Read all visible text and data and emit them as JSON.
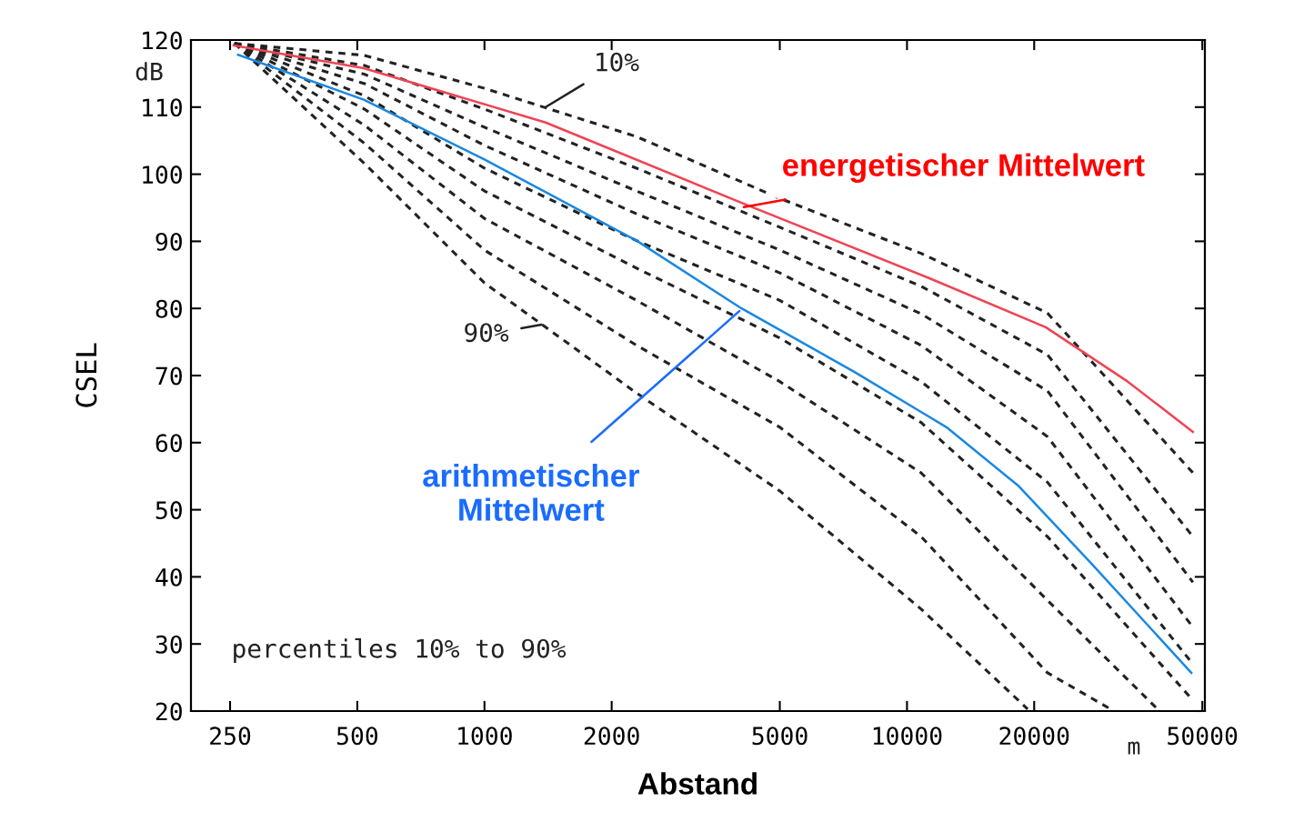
{
  "chart_data": {
    "type": "line",
    "xlabel": "Abstand",
    "ylabel": "CSEL",
    "log": "x",
    "xlim": [
      202,
      50700
    ],
    "ylim": [
      20,
      120
    ],
    "xticks": [
      250,
      500,
      1000,
      2000,
      5000,
      10000,
      20000,
      50000
    ],
    "yticks": [
      20,
      30,
      40,
      50,
      60,
      70,
      80,
      90,
      100,
      110,
      120
    ],
    "grid": false,
    "marker": "none",
    "series": [
      {
        "color": "#222222",
        "line_style": "dashed",
        "x": [
          256,
          520,
          1000,
          2290,
          5000,
          10800,
          21500,
          47500
        ],
        "values": [
          119.5,
          117.7,
          112.8,
          105.6,
          96.4,
          88.2,
          79.3,
          55.5
        ]
      },
      {
        "color": "#222222",
        "line_style": "dashed",
        "x": [
          256,
          520,
          1000,
          2290,
          5000,
          10800,
          21500,
          47500
        ],
        "values": [
          119.5,
          116.2,
          109.7,
          100.9,
          92.1,
          83.3,
          73.1,
          46.0
        ]
      },
      {
        "color": "#222222",
        "line_style": "dashed",
        "x": [
          256,
          520,
          1000,
          2290,
          5000,
          10800,
          21500,
          47500
        ],
        "values": [
          119.5,
          114.9,
          107.0,
          97.5,
          88.7,
          79.2,
          67.7,
          39.2
        ]
      },
      {
        "color": "#222222",
        "line_style": "dashed",
        "x": [
          256,
          520,
          1000,
          2290,
          5000,
          10800,
          21500,
          47500
        ],
        "values": [
          119.5,
          113.5,
          104.3,
          94.1,
          85.3,
          74.5,
          60.9,
          32.5
        ]
      },
      {
        "color": "#222222",
        "line_style": "dashed",
        "x": [
          256,
          520,
          1000,
          2290,
          5000,
          10800,
          21500,
          47500
        ],
        "values": [
          119.5,
          111.7,
          100.9,
          90.1,
          81.2,
          69.1,
          54.1,
          27.0
        ]
      },
      {
        "color": "#222222",
        "line_style": "dashed",
        "x": [
          256,
          520,
          1000,
          2290,
          5000,
          10800,
          21500,
          47500
        ],
        "values": [
          119.5,
          109.7,
          97.5,
          86.0,
          75.6,
          63.0,
          46.0,
          21.6
        ]
      },
      {
        "color": "#222222",
        "line_style": "dashed",
        "x": [
          256,
          520,
          1000,
          2290,
          5000,
          10800,
          21500,
          39600
        ],
        "values": [
          119.5,
          107.3,
          93.4,
          81.2,
          69.1,
          55.5,
          36.5,
          20
        ]
      },
      {
        "color": "#222222",
        "line_style": "dashed",
        "x": [
          256,
          520,
          1000,
          2290,
          5000,
          10800,
          21500,
          30900
        ],
        "values": [
          119.5,
          104.6,
          88.7,
          74.5,
          62.3,
          46.0,
          25.7,
          20
        ]
      },
      {
        "color": "#222222",
        "line_style": "dashed",
        "x": [
          256,
          520,
          1000,
          2290,
          5000,
          10800,
          19300
        ],
        "values": [
          119.5,
          101.6,
          83.8,
          67.4,
          52.8,
          35.2,
          20.3
        ]
      },
      {
        "color": "#ee4455",
        "line_style": "solid",
        "x": [
          255,
          518,
          1396,
          4150,
          11200,
          21300,
          33300,
          47500
        ],
        "values": [
          119.2,
          115.8,
          107.7,
          95.5,
          84.6,
          77.2,
          69.1,
          61.6
        ]
      },
      {
        "color": "#1a88e0",
        "line_style": "solid",
        "x": [
          261,
          518,
          1000,
          2290,
          4060,
          7530,
          12400,
          18400,
          27300,
          47100
        ],
        "values": [
          117.8,
          111.1,
          102.2,
          90.1,
          80,
          70.5,
          62.3,
          53.5,
          42,
          25.7
        ]
      }
    ],
    "annotations": [
      {
        "text": "10%",
        "x": 1396,
        "y": 110.0
      },
      {
        "text": "90%",
        "x": 1365,
        "y": 77.6
      },
      {
        "text": "energetischer Mittelwert",
        "x": 4110,
        "y": 95.1
      },
      {
        "text": "arithmetischer\nMittelwert",
        "x": 4010,
        "y": 79.6
      },
      "dB",
      "m",
      "percentiles 10% to 90%"
    ]
  }
}
